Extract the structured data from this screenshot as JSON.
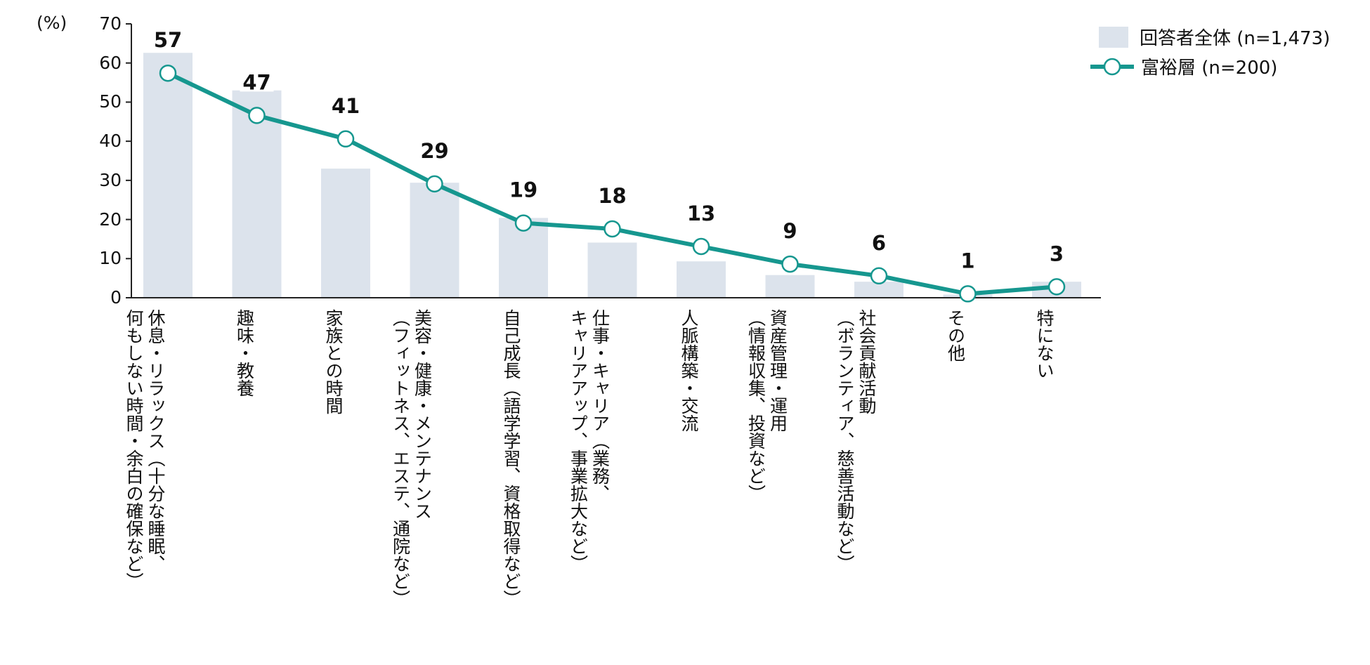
{
  "chart_data": {
    "type": "bar+line",
    "ylabel": "(%)",
    "ylim": [
      0,
      70
    ],
    "yticks": [
      "0",
      "10",
      "20",
      "30",
      "40",
      "50",
      "60",
      "70"
    ],
    "grid": false,
    "legend_position": "top-right",
    "categories": [
      [
        "休息・リラックス（十分な睡眠、",
        "何もしない時間・余白の確保など）"
      ],
      [
        "趣味・教養"
      ],
      [
        "家族との時間"
      ],
      [
        "美容・健康・メンテナンス",
        "（フィットネス、エステ、通院など）"
      ],
      [
        "自己成長（語学学習、資格取得など）"
      ],
      [
        "仕事・キャリア（業務、",
        "キャリアアップ、事業拡大など）"
      ],
      [
        "人脈構築・交流"
      ],
      [
        "資産管理・運用",
        "（情報収集、投資など）"
      ],
      [
        "社会貢献活動",
        "（ボランティア、慈善活動など）"
      ],
      [
        "その他"
      ],
      [
        "特にない"
      ]
    ],
    "series": [
      {
        "name": "回答者全体 (n=1,473)",
        "type": "bar",
        "color": "#dce3ec",
        "values": [
          62.6,
          53.0,
          33.0,
          29.4,
          20.4,
          14.1,
          9.3,
          5.8,
          4.1,
          0.8,
          4.1
        ]
      },
      {
        "name": "富裕層 (n=200)",
        "type": "line",
        "color": "#16978f",
        "values": [
          57.4,
          46.6,
          40.6,
          29.1,
          19.1,
          17.6,
          13.1,
          8.6,
          5.6,
          1.0,
          2.8
        ],
        "data_labels": [
          "57",
          "47",
          "41",
          "29",
          "19",
          "18",
          "13",
          "9",
          "6",
          "1",
          "3"
        ]
      }
    ]
  }
}
